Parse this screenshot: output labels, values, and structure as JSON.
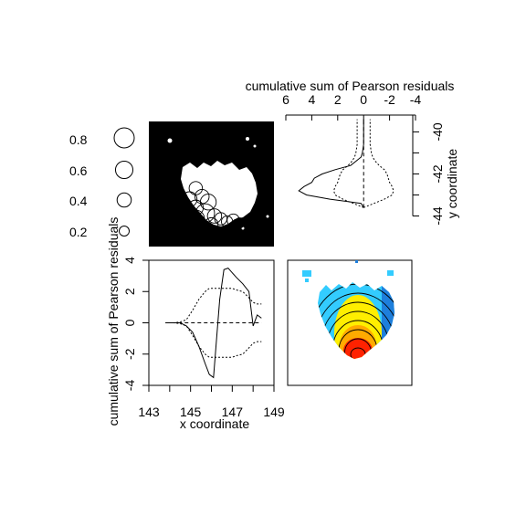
{
  "chart_data": [
    {
      "panel": "bubble-legend",
      "type": "scatter",
      "title": "",
      "values": [
        0.8,
        0.6,
        0.4,
        0.2
      ],
      "labels": [
        "0.8",
        "0.6",
        "0.4",
        "0.2"
      ]
    },
    {
      "panel": "map-residual-bubbles",
      "type": "scatter",
      "title": "",
      "bubbles": [
        {
          "x": 146.0,
          "y": -41.9,
          "value": 0.35
        },
        {
          "x": 146.2,
          "y": -42.2,
          "value": 0.4
        },
        {
          "x": 145.8,
          "y": -42.3,
          "value": 0.45
        },
        {
          "x": 146.4,
          "y": -42.4,
          "value": 0.5
        },
        {
          "x": 146.0,
          "y": -42.6,
          "value": 0.45
        },
        {
          "x": 145.7,
          "y": -42.7,
          "value": 0.4
        },
        {
          "x": 146.3,
          "y": -42.8,
          "value": 0.7
        },
        {
          "x": 146.6,
          "y": -42.9,
          "value": 0.4
        },
        {
          "x": 146.0,
          "y": -43.0,
          "value": 0.6
        },
        {
          "x": 146.8,
          "y": -43.0,
          "value": 0.3
        },
        {
          "x": 147.0,
          "y": -43.1,
          "value": 0.25
        },
        {
          "x": 147.2,
          "y": -43.05,
          "value": 0.3
        },
        {
          "x": 146.5,
          "y": -43.2,
          "value": 0.35
        },
        {
          "x": 147.4,
          "y": -43.15,
          "value": 0.2
        },
        {
          "x": 146.2,
          "y": -43.25,
          "value": 0.2
        }
      ]
    },
    {
      "panel": "y-cumulative-residuals",
      "type": "line",
      "title": "",
      "xlabel": "cumulative sum of Pearson residuals",
      "ylabel": "y coordinate",
      "xlim": [
        6,
        -4
      ],
      "ylim": [
        -44.5,
        -39.2
      ],
      "xticks": [
        "6",
        "4",
        "2",
        "0",
        "-2",
        "-4"
      ],
      "yticks": [
        "-44",
        "-42",
        "-40"
      ],
      "y": [
        -43.6,
        -43.4,
        -43.2,
        -43.0,
        -42.8,
        -42.6,
        -42.4,
        -42.2,
        -42.0,
        -41.8,
        -41.6,
        -41.4,
        -41.2,
        -41.0,
        -40.8,
        -40.6,
        -40.4,
        -40.2,
        -40.0,
        -39.8,
        -39.6,
        -39.4
      ],
      "series": [
        {
          "role": "observed",
          "values": [
            0.0,
            0.2,
            2.6,
            4.4,
            5.0,
            4.6,
            4.0,
            3.8,
            3.2,
            2.2,
            1.0,
            0.6,
            0.2,
            0.1,
            0.05,
            0.0,
            0.0,
            0.0,
            0.0,
            0.0,
            0.0,
            0.0
          ]
        },
        {
          "role": "upper-envelope",
          "values": [
            0.0,
            0.8,
            1.6,
            2.2,
            2.3,
            2.2,
            2.0,
            1.9,
            1.8,
            1.6,
            1.2,
            0.9,
            0.7,
            0.6,
            0.55,
            0.5,
            0.5,
            0.5,
            0.5,
            0.5,
            0.5,
            0.5
          ]
        },
        {
          "role": "lower-envelope",
          "values": [
            0.0,
            -0.8,
            -1.6,
            -2.2,
            -2.3,
            -2.2,
            -2.0,
            -1.9,
            -1.8,
            -1.6,
            -1.2,
            -0.9,
            -0.7,
            -0.6,
            -0.55,
            -0.5,
            -0.5,
            -0.5,
            -0.5,
            -0.5,
            -0.5,
            -0.5
          ]
        }
      ]
    },
    {
      "panel": "x-cumulative-residuals",
      "type": "line",
      "title": "",
      "xlabel": "x coordinate",
      "ylabel": "cumulative sum of Pearson residuals",
      "xlim": [
        143,
        149
      ],
      "ylim": [
        -4,
        4
      ],
      "xticks": [
        "143",
        "145",
        "147",
        "149"
      ],
      "yticks": [
        "-4",
        "-2",
        "0",
        "2",
        "4"
      ],
      "x": [
        143.8,
        144.2,
        144.5,
        144.8,
        145.1,
        145.4,
        145.7,
        145.9,
        146.1,
        146.25,
        146.4,
        146.6,
        146.8,
        147.0,
        147.2,
        147.5,
        147.8,
        148.0,
        148.2,
        148.4
      ],
      "series": [
        {
          "role": "observed",
          "values": [
            0.0,
            0.0,
            0.0,
            -0.2,
            -0.6,
            -1.5,
            -2.6,
            -3.3,
            -3.5,
            -1.0,
            1.5,
            3.4,
            3.5,
            3.2,
            2.9,
            2.5,
            2.0,
            -0.2,
            0.5,
            0.3
          ]
        },
        {
          "role": "upper-envelope",
          "values": [
            0.0,
            0.0,
            0.05,
            0.2,
            0.8,
            1.5,
            2.0,
            2.2,
            2.2,
            2.2,
            2.2,
            2.2,
            2.2,
            2.2,
            2.1,
            2.0,
            1.6,
            1.3,
            1.2,
            1.2
          ]
        },
        {
          "role": "lower-envelope",
          "values": [
            0.0,
            0.0,
            -0.05,
            -0.2,
            -0.8,
            -1.5,
            -2.0,
            -2.2,
            -2.2,
            -2.2,
            -2.2,
            -2.2,
            -2.2,
            -2.2,
            -2.1,
            -2.0,
            -1.6,
            -1.3,
            -1.2,
            -1.2
          ]
        }
      ]
    },
    {
      "panel": "smoothed-residual-field",
      "type": "heatmap",
      "title": "",
      "colors": [
        "#ff0000",
        "#ffee00",
        "#33ccff",
        "#1e7fdc"
      ],
      "contour_levels": 8
    }
  ]
}
